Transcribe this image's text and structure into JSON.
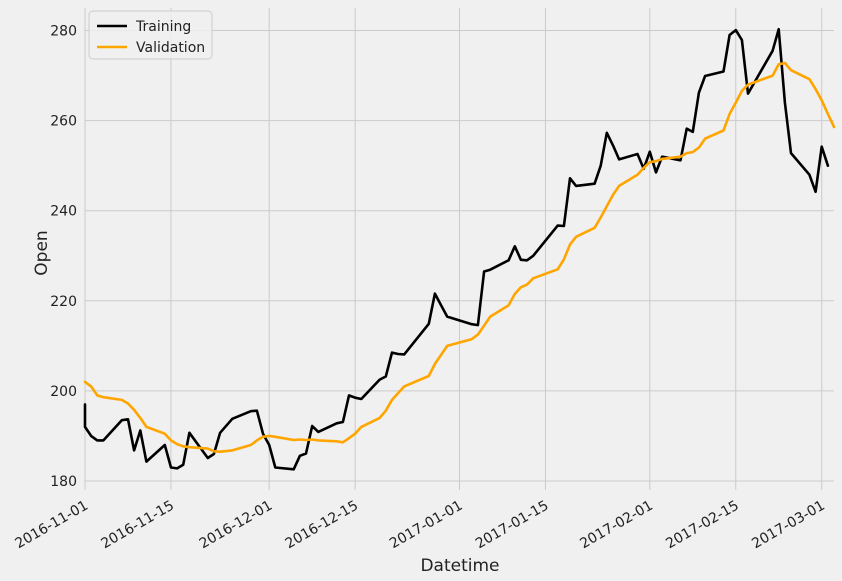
{
  "chart_data": {
    "type": "line",
    "xlabel": "Datetime",
    "ylabel": "Open",
    "xlim": [
      "2016-11-01",
      "2017-03-03"
    ],
    "ylim": [
      178,
      285
    ],
    "grid": true,
    "legend_position": "top-left",
    "x_ticks": [
      "2016-11-01",
      "2016-11-15",
      "2016-12-01",
      "2016-12-15",
      "2017-01-01",
      "2017-01-15",
      "2017-02-01",
      "2017-02-15",
      "2017-03-01"
    ],
    "y_ticks": [
      180,
      200,
      220,
      240,
      260,
      280
    ],
    "colors": {
      "Training": "#000000",
      "Validation": "#ffa500"
    },
    "series": [
      {
        "name": "Training",
        "points": [
          [
            "2016-11-01",
            197
          ],
          [
            "2016-11-01",
            192
          ],
          [
            "2016-11-02",
            190
          ],
          [
            "2016-11-03",
            189
          ],
          [
            "2016-11-04",
            189
          ],
          [
            "2016-11-07",
            193.5
          ],
          [
            "2016-11-08",
            193.7
          ],
          [
            "2016-11-09",
            186.8
          ],
          [
            "2016-11-10",
            191.2
          ],
          [
            "2016-11-11",
            184.3
          ],
          [
            "2016-11-14",
            188
          ],
          [
            "2016-11-15",
            183
          ],
          [
            "2016-11-16",
            182.8
          ],
          [
            "2016-11-17",
            183.6
          ],
          [
            "2016-11-18",
            190.7
          ],
          [
            "2016-11-21",
            185.1
          ],
          [
            "2016-11-22",
            186
          ],
          [
            "2016-11-23",
            190.7
          ],
          [
            "2016-11-25",
            193.8
          ],
          [
            "2016-11-28",
            195.5
          ],
          [
            "2016-11-29",
            195.6
          ],
          [
            "2016-11-30",
            190.5
          ],
          [
            "2016-12-01",
            188
          ],
          [
            "2016-12-02",
            183
          ],
          [
            "2016-12-05",
            182.6
          ],
          [
            "2016-12-06",
            185.6
          ],
          [
            "2016-12-07",
            186.1
          ],
          [
            "2016-12-08",
            192.2
          ],
          [
            "2016-12-09",
            190.9
          ],
          [
            "2016-12-12",
            192.8
          ],
          [
            "2016-12-13",
            193.1
          ],
          [
            "2016-12-14",
            199
          ],
          [
            "2016-12-15",
            198.5
          ],
          [
            "2016-12-16",
            198.2
          ],
          [
            "2016-12-19",
            202.5
          ],
          [
            "2016-12-20",
            203.2
          ],
          [
            "2016-12-21",
            208.5
          ],
          [
            "2016-12-22",
            208.2
          ],
          [
            "2016-12-23",
            208.1
          ],
          [
            "2016-12-27",
            214.9
          ],
          [
            "2016-12-28",
            221.6
          ],
          [
            "2016-12-29",
            219
          ],
          [
            "2016-12-30",
            216.5
          ],
          [
            "2017-01-03",
            214.8
          ],
          [
            "2017-01-04",
            214.6
          ],
          [
            "2017-01-05",
            226.5
          ],
          [
            "2017-01-06",
            226.9
          ],
          [
            "2017-01-09",
            229
          ],
          [
            "2017-01-10",
            232.1
          ],
          [
            "2017-01-11",
            229.1
          ],
          [
            "2017-01-12",
            229
          ],
          [
            "2017-01-13",
            230
          ],
          [
            "2017-01-17",
            236.7
          ],
          [
            "2017-01-18",
            236.6
          ],
          [
            "2017-01-19",
            247.2
          ],
          [
            "2017-01-20",
            245.5
          ],
          [
            "2017-01-23",
            246
          ],
          [
            "2017-01-24",
            250
          ],
          [
            "2017-01-25",
            257.3
          ],
          [
            "2017-01-26",
            254.5
          ],
          [
            "2017-01-27",
            251.4
          ],
          [
            "2017-01-30",
            252.6
          ],
          [
            "2017-01-31",
            249.3
          ],
          [
            "2017-02-01",
            253.1
          ],
          [
            "2017-02-02",
            248.5
          ],
          [
            "2017-02-03",
            252
          ],
          [
            "2017-02-06",
            251.2
          ],
          [
            "2017-02-07",
            258.2
          ],
          [
            "2017-02-08",
            257.5
          ],
          [
            "2017-02-09",
            266.2
          ],
          [
            "2017-02-10",
            269.9
          ],
          [
            "2017-02-13",
            270.9
          ],
          [
            "2017-02-14",
            279
          ],
          [
            "2017-02-15",
            280.1
          ],
          [
            "2017-02-16",
            277.9
          ],
          [
            "2017-02-17",
            266
          ],
          [
            "2017-02-21",
            275.5
          ],
          [
            "2017-02-22",
            280.3
          ],
          [
            "2017-02-23",
            264
          ],
          [
            "2017-02-24",
            252.8
          ],
          [
            "2017-02-27",
            248
          ],
          [
            "2017-02-28",
            244.2
          ],
          [
            "2017-03-01",
            254.2
          ],
          [
            "2017-03-02",
            250
          ]
        ]
      },
      {
        "name": "Validation",
        "points": [
          [
            "2016-11-01",
            202
          ],
          [
            "2016-11-02",
            201
          ],
          [
            "2016-11-03",
            199
          ],
          [
            "2016-11-04",
            198.6
          ],
          [
            "2016-11-07",
            198
          ],
          [
            "2016-11-08",
            197.2
          ],
          [
            "2016-11-09",
            195.8
          ],
          [
            "2016-11-10",
            194
          ],
          [
            "2016-11-11",
            192
          ],
          [
            "2016-11-14",
            190.5
          ],
          [
            "2016-11-15",
            189
          ],
          [
            "2016-11-16",
            188.2
          ],
          [
            "2016-11-17",
            187.7
          ],
          [
            "2016-11-18",
            187.5
          ],
          [
            "2016-11-21",
            187.2
          ],
          [
            "2016-11-22",
            186.6
          ],
          [
            "2016-11-23",
            186.5
          ],
          [
            "2016-11-25",
            186.8
          ],
          [
            "2016-11-28",
            188
          ],
          [
            "2016-11-29",
            189
          ],
          [
            "2016-11-30",
            189.8
          ],
          [
            "2016-12-01",
            190
          ],
          [
            "2016-12-02",
            189.8
          ],
          [
            "2016-12-05",
            189.1
          ],
          [
            "2016-12-06",
            189.2
          ],
          [
            "2016-12-07",
            189.1
          ],
          [
            "2016-12-08",
            189.2
          ],
          [
            "2016-12-09",
            189
          ],
          [
            "2016-12-12",
            188.8
          ],
          [
            "2016-12-13",
            188.6
          ],
          [
            "2016-12-14",
            189.5
          ],
          [
            "2016-12-15",
            190.5
          ],
          [
            "2016-12-16",
            192
          ],
          [
            "2016-12-19",
            194
          ],
          [
            "2016-12-20",
            195.6
          ],
          [
            "2016-12-21",
            198
          ],
          [
            "2016-12-22",
            199.5
          ],
          [
            "2016-12-23",
            201
          ],
          [
            "2016-12-27",
            203.3
          ],
          [
            "2016-12-28",
            206
          ],
          [
            "2016-12-29",
            208
          ],
          [
            "2016-12-30",
            210
          ],
          [
            "2017-01-03",
            211.5
          ],
          [
            "2017-01-04",
            212.5
          ],
          [
            "2017-01-05",
            214.5
          ],
          [
            "2017-01-06",
            216.5
          ],
          [
            "2017-01-09",
            219
          ],
          [
            "2017-01-10",
            221.5
          ],
          [
            "2017-01-11",
            223
          ],
          [
            "2017-01-12",
            223.6
          ],
          [
            "2017-01-13",
            225
          ],
          [
            "2017-01-17",
            227
          ],
          [
            "2017-01-18",
            229.2
          ],
          [
            "2017-01-19",
            232.5
          ],
          [
            "2017-01-20",
            234.2
          ],
          [
            "2017-01-23",
            236.2
          ],
          [
            "2017-01-24",
            238.5
          ],
          [
            "2017-01-25",
            241
          ],
          [
            "2017-01-26",
            243.5
          ],
          [
            "2017-01-27",
            245.5
          ],
          [
            "2017-01-30",
            248
          ],
          [
            "2017-01-31",
            249.5
          ],
          [
            "2017-02-01",
            250.8
          ],
          [
            "2017-02-02",
            251
          ],
          [
            "2017-02-03",
            251.5
          ],
          [
            "2017-02-06",
            252
          ],
          [
            "2017-02-07",
            252.8
          ],
          [
            "2017-02-08",
            253
          ],
          [
            "2017-02-09",
            254
          ],
          [
            "2017-02-10",
            256
          ],
          [
            "2017-02-13",
            257.8
          ],
          [
            "2017-02-14",
            261.5
          ],
          [
            "2017-02-15",
            264
          ],
          [
            "2017-02-16",
            266.6
          ],
          [
            "2017-02-17",
            268
          ],
          [
            "2017-02-21",
            270
          ],
          [
            "2017-02-22",
            272.5
          ],
          [
            "2017-02-23",
            272.8
          ],
          [
            "2017-02-24",
            271.2
          ],
          [
            "2017-02-27",
            269.2
          ],
          [
            "2017-02-28",
            267
          ],
          [
            "2017-03-01",
            264.5
          ],
          [
            "2017-03-02",
            261.5
          ],
          [
            "2017-03-03",
            258.6
          ]
        ]
      }
    ]
  }
}
